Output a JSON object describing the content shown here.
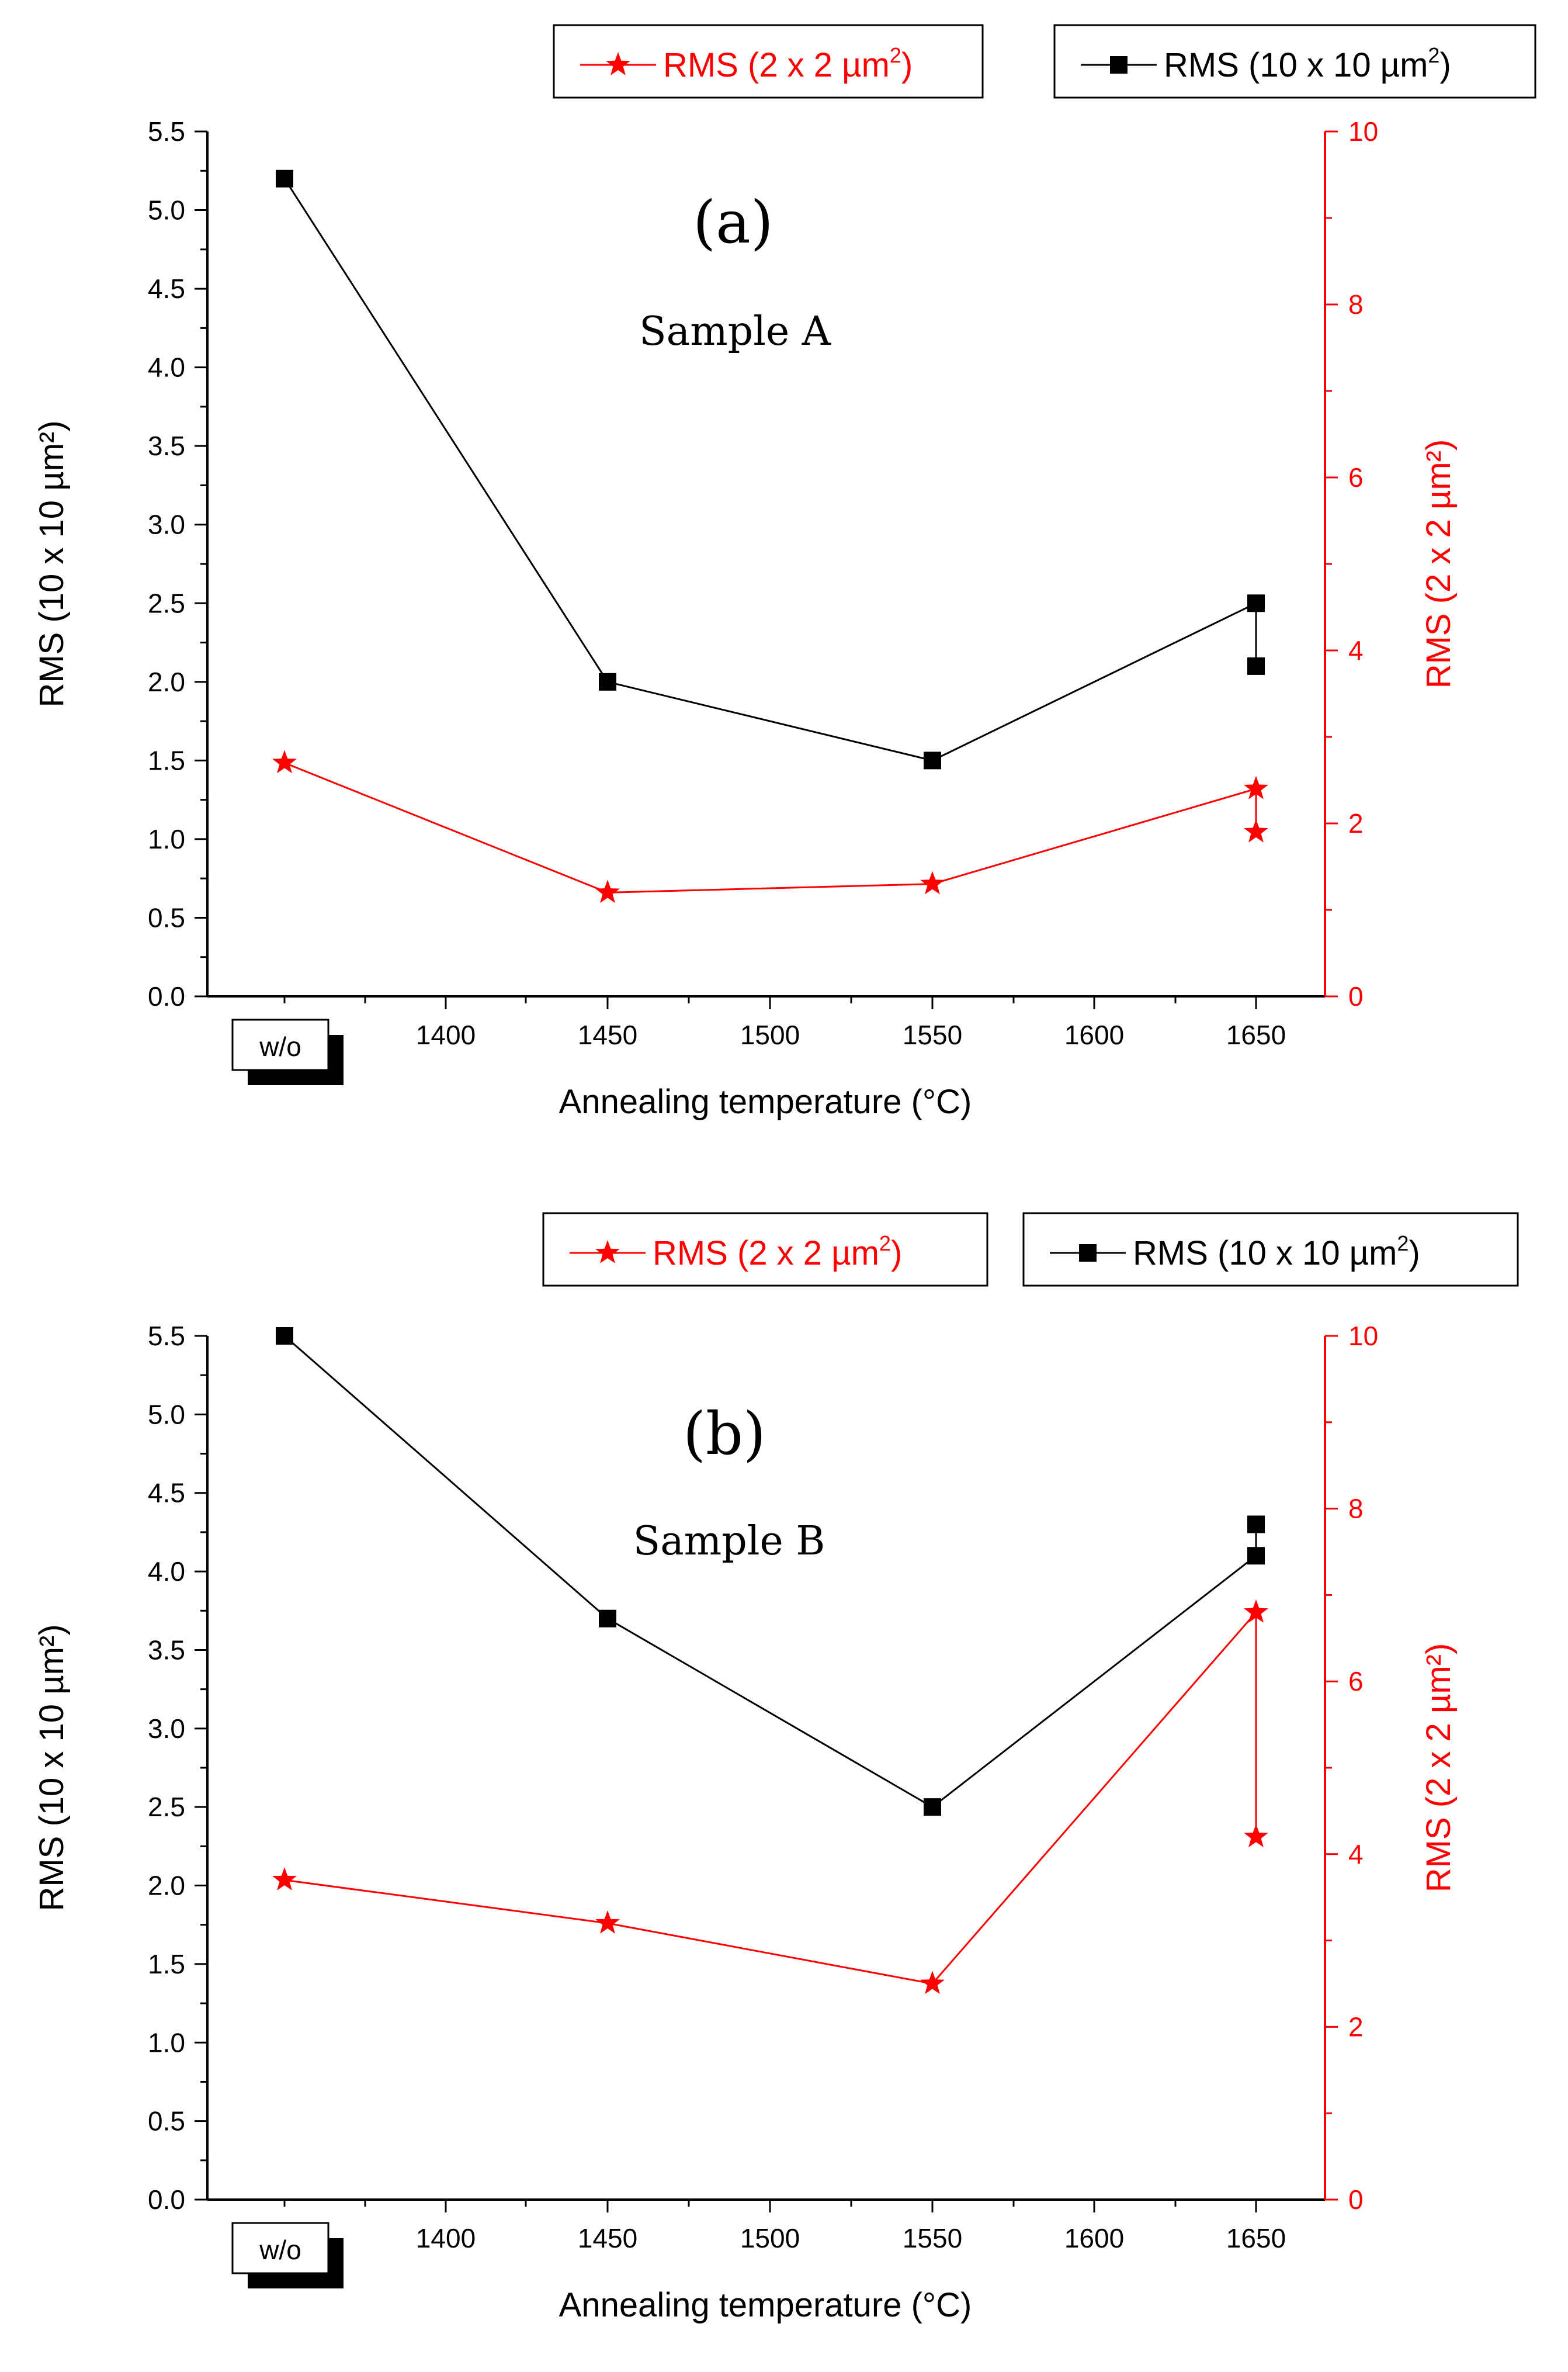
{
  "figure": {
    "colors": {
      "black_series": "#000000",
      "red_series": "#ff0000"
    },
    "x_axis_title": "Annealing temperature (°C)",
    "x_first_category_label": "w/o"
  },
  "chart_data": [
    {
      "id": "a",
      "type": "line",
      "title": "(a)",
      "subtitle": "Sample A",
      "xlabel": "Annealing temperature (°C)",
      "x_tick_labels": [
        "1400",
        "1450",
        "1500",
        "1550",
        "1600",
        "1650"
      ],
      "x_category_label": "w/o",
      "ylabel_left": "RMS (10 x 10 µm²)",
      "ylabel_right": "RMS (2 x 2 µm²)",
      "ylim_left": [
        0,
        5.5
      ],
      "ylim_right": [
        0,
        10
      ],
      "left_ticks": [
        "0.0",
        "0.5",
        "1.0",
        "1.5",
        "2.0",
        "2.5",
        "3.0",
        "3.5",
        "4.0",
        "4.5",
        "5.0",
        "5.5"
      ],
      "right_ticks": [
        "0",
        "2",
        "4",
        "6",
        "8",
        "10"
      ],
      "legend": [
        {
          "label": "RMS (2 x 2 µm",
          "sup": "2",
          "close": ")",
          "marker": "star",
          "color": "#ff0000"
        },
        {
          "label": "RMS (10 x 10 µm",
          "sup": "2",
          "close": ")",
          "marker": "square",
          "color": "#000000"
        }
      ],
      "series": [
        {
          "name": "RMS (10 x 10 µm²)",
          "axis": "left",
          "marker": "square",
          "color": "#000000",
          "points": [
            [
              "w/o",
              5.2
            ],
            [
              1450,
              2.0
            ],
            [
              1550,
              1.5
            ],
            [
              1650,
              2.5
            ],
            [
              1650,
              2.1
            ]
          ]
        },
        {
          "name": "RMS (2 x 2 µm²)",
          "axis": "right",
          "marker": "star",
          "color": "#ff0000",
          "points": [
            [
              "w/o",
              2.7
            ],
            [
              1450,
              1.2
            ],
            [
              1550,
              1.3
            ],
            [
              1650,
              2.4
            ],
            [
              1650,
              1.9
            ]
          ]
        }
      ]
    },
    {
      "id": "b",
      "type": "line",
      "title": "(b)",
      "subtitle": "Sample B",
      "xlabel": "Annealing temperature (°C)",
      "x_tick_labels": [
        "1400",
        "1450",
        "1500",
        "1550",
        "1600",
        "1650"
      ],
      "x_category_label": "w/o",
      "ylabel_left": "RMS (10 x 10 µm²)",
      "ylabel_right": "RMS (2 x 2 µm²)",
      "ylim_left": [
        0,
        5.5
      ],
      "ylim_right": [
        0,
        10
      ],
      "left_ticks": [
        "0.0",
        "0.5",
        "1.0",
        "1.5",
        "2.0",
        "2.5",
        "3.0",
        "3.5",
        "4.0",
        "4.5",
        "5.0",
        "5.5"
      ],
      "right_ticks": [
        "0",
        "2",
        "4",
        "6",
        "8",
        "10"
      ],
      "legend": [
        {
          "label": "RMS (2 x 2 µm",
          "sup": "2",
          "close": ")",
          "marker": "star",
          "color": "#ff0000"
        },
        {
          "label": "RMS (10 x 10 µm",
          "sup": "2",
          "close": ")",
          "marker": "square",
          "color": "#000000"
        }
      ],
      "series": [
        {
          "name": "RMS (10 x 10 µm²)",
          "axis": "left",
          "marker": "square",
          "color": "#000000",
          "points": [
            [
              "w/o",
              5.5
            ],
            [
              1450,
              3.7
            ],
            [
              1550,
              2.5
            ],
            [
              1650,
              4.1
            ],
            [
              1650,
              4.3
            ]
          ]
        },
        {
          "name": "RMS (2 x 2 µm²)",
          "axis": "right",
          "marker": "star",
          "color": "#ff0000",
          "points": [
            [
              "w/o",
              3.7
            ],
            [
              1450,
              3.2
            ],
            [
              1550,
              2.5
            ],
            [
              1650,
              6.8
            ],
            [
              1650,
              4.2
            ]
          ]
        }
      ]
    }
  ]
}
